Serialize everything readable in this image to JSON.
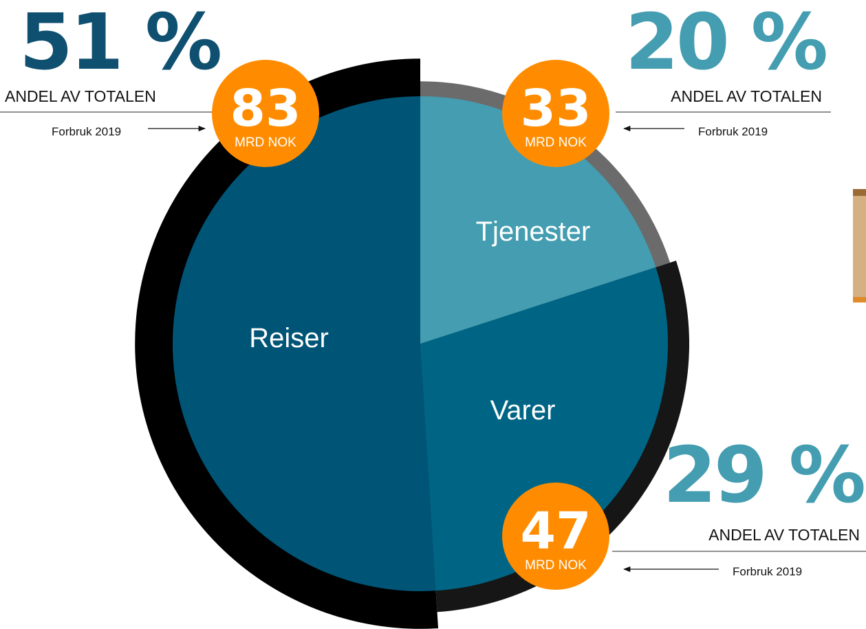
{
  "chart_data": {
    "type": "pie",
    "categories": [
      "Tjenester",
      "Varer",
      "Reiser"
    ],
    "values": [
      20,
      29,
      51
    ],
    "value_labels": [
      "20 %",
      "29 %",
      "51 %"
    ],
    "colors": [
      "#449db0",
      "#006585",
      "#005577"
    ],
    "label_colors": [
      "#449db0",
      "#449db0",
      "#0f5070"
    ],
    "amounts": [
      33,
      47,
      83
    ],
    "ring_colors": [
      "#6b6b6b",
      "#161616",
      "#000000"
    ],
    "amount_unit": "MRD NOK",
    "share_caption": "ANDEL AV TOTALEN",
    "amount_caption": "Forbruk 2019"
  }
}
